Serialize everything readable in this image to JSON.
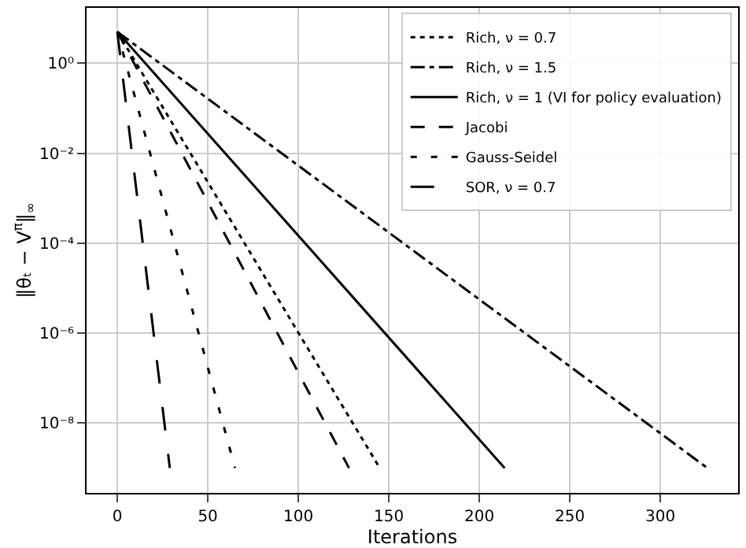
{
  "chart_data": {
    "type": "line",
    "xlabel": "Iterations",
    "ylabel": "‖θₜ − V$^{π}$‖$_{∞}$",
    "log": "y",
    "grid": true,
    "legend": "top right",
    "xlim": [
      -17,
      343
    ],
    "xticks": [
      0,
      50,
      100,
      150,
      200,
      250,
      300
    ],
    "ylim": [
      2.8e-10,
      17
    ],
    "yticks": [
      {
        "value": 1,
        "label": "10⁰"
      },
      {
        "value": 0.01,
        "label": "10⁻²"
      },
      {
        "value": 0.0001,
        "label": "10⁻⁴"
      },
      {
        "value": 1e-06,
        "label": "10⁻⁶"
      },
      {
        "value": 1e-08,
        "label": "10⁻⁸"
      }
    ],
    "series": [
      {
        "name": "Rich, ν = 0.7",
        "color": "#000000",
        "line_style": "dotted",
        "x": [
          0,
          145
        ],
        "values": [
          5,
          1e-09
        ]
      },
      {
        "name": "Rich, ν = 1.5",
        "color": "#000000",
        "line_style": "dashdot",
        "x": [
          0,
          326
        ],
        "values": [
          5,
          1e-09
        ]
      },
      {
        "name": "Rich, ν = 1 (VI for policy evaluation)",
        "color": "#000000",
        "line_style": "solid",
        "x": [
          0,
          214
        ],
        "values": [
          5,
          1e-09
        ]
      },
      {
        "name": "Jacobi",
        "color": "#000000",
        "line_style": "dashed",
        "x": [
          0,
          128
        ],
        "values": [
          5,
          1e-09
        ]
      },
      {
        "name": "Gauss-Seidel",
        "color": "#000000",
        "line_style": "spaced",
        "x": [
          0,
          65
        ],
        "values": [
          5,
          1e-09
        ]
      },
      {
        "name": "SOR, ν = 0.7",
        "color": "#000000",
        "line_style": "longdash",
        "x": [
          0,
          29
        ],
        "values": [
          5,
          1e-09
        ]
      }
    ]
  }
}
